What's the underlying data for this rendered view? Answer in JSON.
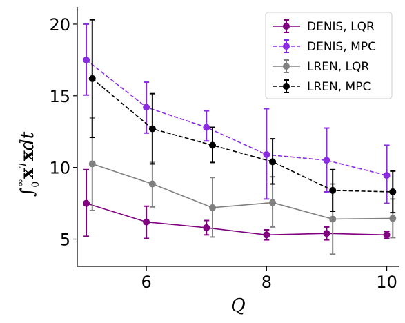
{
  "chart_data": {
    "type": "line",
    "x": [
      5,
      6,
      7,
      8,
      9,
      10
    ],
    "xlabel": "Q",
    "ylabel": "∫₀^∞ xᵀx dt",
    "xlim": [
      4.85,
      10.2
    ],
    "ylim": [
      3.1,
      21.2
    ],
    "xticks": [
      6,
      8,
      10
    ],
    "yticks": [
      5,
      10,
      15,
      20
    ],
    "grid": false,
    "legend_position": "top-right",
    "series": [
      {
        "name": "DENIS, LQR",
        "color": "#800080",
        "linestyle": "solid",
        "x_offset": 0,
        "values": [
          7.5,
          6.2,
          5.8,
          5.3,
          5.4,
          5.3
        ],
        "err_low": [
          5.2,
          5.05,
          5.3,
          4.95,
          4.95,
          5.05
        ],
        "err_high": [
          9.85,
          7.3,
          6.3,
          5.65,
          5.85,
          5.55
        ]
      },
      {
        "name": "DENIS, MPC",
        "color": "#8a2be2",
        "linestyle": "dashed",
        "x_offset": 0,
        "values": [
          17.5,
          14.2,
          12.8,
          10.9,
          10.5,
          9.45
        ],
        "err_low": [
          15.05,
          12.4,
          11.85,
          7.8,
          8.3,
          7.5
        ],
        "err_high": [
          20.0,
          15.95,
          13.95,
          14.1,
          12.75,
          11.55
        ]
      },
      {
        "name": "LREN, LQR",
        "color": "#808080",
        "linestyle": "solid",
        "x_offset": 0.1,
        "values": [
          10.25,
          8.85,
          7.2,
          7.55,
          6.4,
          6.45
        ],
        "err_low": [
          7.0,
          7.25,
          5.15,
          5.85,
          3.95,
          5.1
        ],
        "err_high": [
          13.45,
          10.35,
          9.3,
          9.35,
          8.85,
          7.8
        ]
      },
      {
        "name": "LREN, MPC",
        "color": "#000000",
        "linestyle": "dashed",
        "x_offset": 0.1,
        "values": [
          16.2,
          12.7,
          11.55,
          10.4,
          8.4,
          8.3
        ],
        "err_low": [
          12.1,
          10.25,
          10.35,
          8.85,
          6.95,
          6.85
        ],
        "err_high": [
          20.3,
          15.15,
          12.8,
          12.0,
          9.85,
          9.75
        ]
      }
    ]
  }
}
